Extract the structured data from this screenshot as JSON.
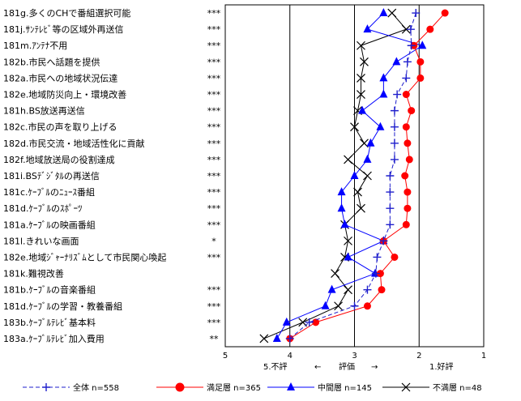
{
  "chart_data": {
    "type": "line",
    "orientation": "horizontal",
    "x_axis": {
      "ticks": [
        5,
        4,
        3,
        2,
        1
      ],
      "range": [
        5,
        1
      ],
      "reversed": true,
      "grid": true,
      "caption_left": "5.不評",
      "caption_left_arrow": "←",
      "caption_center": "評価",
      "caption_right_arrow": "→",
      "caption_right": "1.好評"
    },
    "categories": [
      "181g.多くのCHで番組選択可能",
      "181j.ｻﾝﾃﾚﾋﾞ等の区域外再送信",
      "181m.ｱﾝﾃﾅ不用",
      "182b.市民へ話題を提供",
      "182a.市民への地域状況伝達",
      "182e.地域防災向上・環境改善",
      "181h.BS放送再送信",
      "182c.市民の声を取り上げる",
      "182d.市民交流・地域活性化に貢献",
      "182f.地域放送局の役割達成",
      "181i.BSﾃﾞｼﾞﾀﾙの再送信",
      "181c.ｹｰﾌﾞﾙのﾆｭｰｽ番組",
      "181d.ｹｰﾌﾞﾙのｽﾎﾟｰﾂ",
      "181a.ｹｰﾌﾞﾙの映画番組",
      "181l.きれいな画面",
      "182e.地域ｼﾞｬｰﾅﾘｽﾞﾑとして市民関心喚起",
      "181k.難視改善",
      "181b.ｹｰﾌﾞﾙの音楽番組",
      "181d.ｹｰﾌﾞﾙの学習・教養番組",
      "183b.ｹｰﾌﾞﾙﾃﾚﾋﾞ基本料",
      "183a.ｹｰﾌﾞﾙﾃﾚﾋﾞ加入費用"
    ],
    "significance": [
      "***",
      "***",
      "***",
      "***",
      "***",
      "***",
      "***",
      "***",
      "***",
      "***",
      "***",
      "***",
      "***",
      "***",
      "*",
      "***",
      "",
      "***",
      "***",
      "***",
      "**"
    ],
    "series": [
      {
        "name": "全体 n=558",
        "color": "#1f1fcc",
        "line_style": "dashed",
        "marker": "plus",
        "values": [
          2.05,
          2.13,
          2.12,
          2.18,
          2.2,
          2.34,
          2.38,
          2.38,
          2.38,
          2.38,
          2.45,
          2.45,
          2.45,
          2.45,
          2.55,
          2.65,
          2.67,
          2.8,
          3.0,
          3.7,
          4.0
        ]
      },
      {
        "name": "満足層 n=365",
        "color": "#ff0000",
        "line_style": "solid",
        "marker": "circle",
        "values": [
          1.6,
          1.83,
          2.08,
          1.98,
          1.98,
          2.2,
          2.12,
          2.2,
          2.18,
          2.15,
          2.22,
          2.18,
          2.18,
          2.2,
          2.55,
          2.38,
          2.6,
          2.58,
          2.8,
          3.6,
          4.0
        ]
      },
      {
        "name": "中間層 n=145",
        "color": "#0000ff",
        "line_style": "solid",
        "marker": "triangle",
        "values": [
          2.55,
          2.8,
          1.95,
          2.35,
          2.55,
          2.55,
          2.88,
          2.6,
          2.75,
          2.8,
          3.0,
          3.2,
          3.2,
          3.15,
          2.55,
          3.1,
          2.68,
          3.35,
          3.45,
          4.05,
          4.2
        ]
      },
      {
        "name": "不満層 n=48",
        "color": "#000000",
        "line_style": "solid",
        "marker": "x",
        "values": [
          2.42,
          2.2,
          2.9,
          2.85,
          2.9,
          2.9,
          2.95,
          3.0,
          2.85,
          3.1,
          2.8,
          2.95,
          2.9,
          3.15,
          3.1,
          3.15,
          3.3,
          3.1,
          3.25,
          3.8,
          4.4
        ]
      }
    ]
  }
}
